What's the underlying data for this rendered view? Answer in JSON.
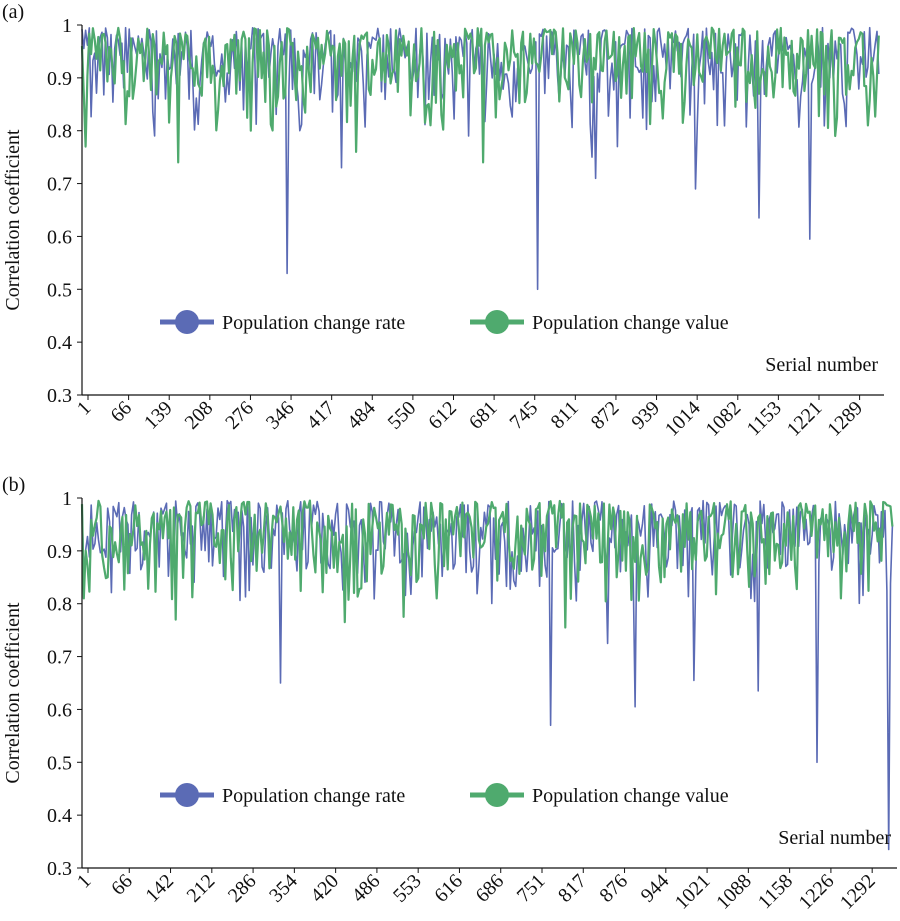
{
  "colors": {
    "rate": "#5b6bb5",
    "value": "#4faa6e",
    "axis": "#111111"
  },
  "chart_data": [
    {
      "panel_label": "(a)",
      "type": "line",
      "ylabel": "Correlation coefficient",
      "xlabel": "Serial number",
      "ylim": [
        0.3,
        1.0
      ],
      "yticks": [
        "0.3",
        "0.4",
        "0.5",
        "0.6",
        "0.7",
        "0.8",
        "0.9",
        "1"
      ],
      "xlim": [
        1,
        1320
      ],
      "xticks": [
        "1",
        "66",
        "139",
        "208",
        "276",
        "346",
        "417",
        "484",
        "550",
        "612",
        "681",
        "745",
        "811",
        "872",
        "939",
        "1014",
        "1082",
        "1153",
        "1221",
        "1289"
      ],
      "legend_position": "center",
      "series": [
        {
          "name": "Population change rate",
          "dips": [
            [
              340,
              0.53
            ],
            [
              430,
              0.73
            ],
            [
              755,
              0.5
            ],
            [
              845,
              0.75
            ],
            [
              850,
              0.71
            ],
            [
              885,
              0.77
            ],
            [
              1015,
              0.69
            ],
            [
              1120,
              0.635
            ],
            [
              1205,
              0.595
            ],
            [
              120,
              0.79
            ],
            [
              640,
              0.79
            ]
          ]
        },
        {
          "name": "Population change value",
          "dips": [
            [
              8,
              0.77
            ],
            [
              160,
              0.74
            ],
            [
              280,
              0.8
            ],
            [
              455,
              0.76
            ],
            [
              665,
              0.74
            ],
            [
              1245,
              0.79
            ],
            [
              1300,
              0.81
            ]
          ]
        }
      ]
    },
    {
      "panel_label": "(b)",
      "type": "line",
      "ylabel": "Correlation coefficient",
      "xlabel": "Serial number",
      "ylim": [
        0.3,
        1.0
      ],
      "yticks": [
        "0.3",
        "0.4",
        "0.5",
        "0.6",
        "0.7",
        "0.8",
        "0.9",
        "1"
      ],
      "xlim": [
        1,
        1325
      ],
      "xticks": [
        "1",
        "66",
        "142",
        "212",
        "286",
        "354",
        "420",
        "486",
        "553",
        "616",
        "686",
        "751",
        "817",
        "876",
        "944",
        "1021",
        "1088",
        "1158",
        "1226",
        "1292"
      ],
      "legend_position": "center",
      "series": [
        {
          "name": "Population change rate",
          "dips": [
            [
              325,
              0.65
            ],
            [
              765,
              0.57
            ],
            [
              860,
              0.725
            ],
            [
              905,
              0.605
            ],
            [
              1000,
              0.655
            ],
            [
              1105,
              0.635
            ],
            [
              1200,
              0.5
            ],
            [
              1318,
              0.335
            ]
          ]
        },
        {
          "name": "Population change value",
          "dips": [
            [
              155,
              0.77
            ],
            [
              430,
              0.765
            ],
            [
              525,
              0.775
            ],
            [
              790,
              0.755
            ],
            [
              5,
              0.81
            ],
            [
              1240,
              0.81
            ]
          ]
        }
      ]
    }
  ]
}
